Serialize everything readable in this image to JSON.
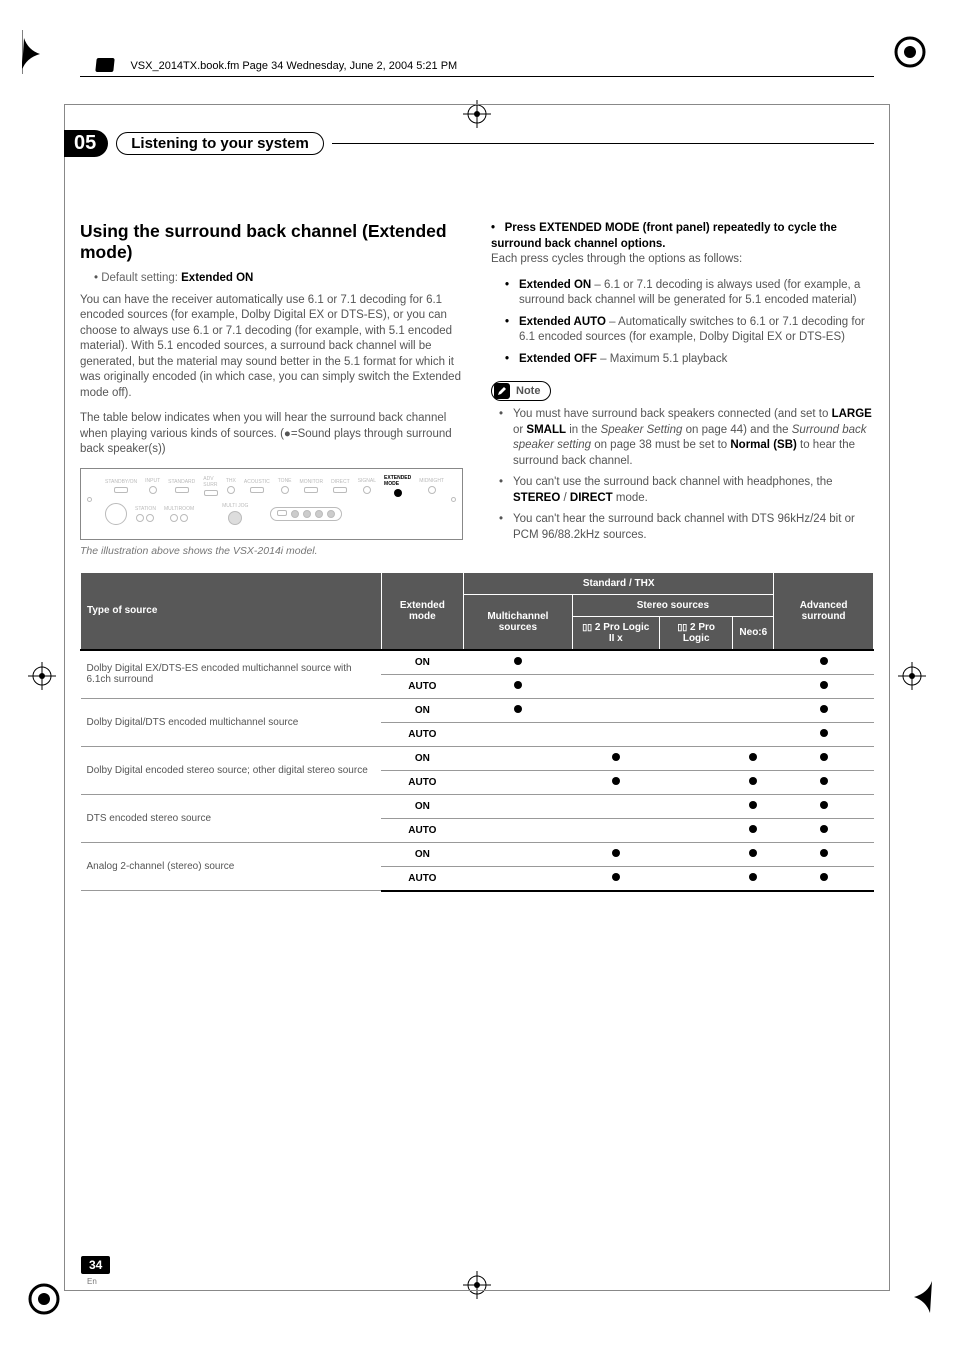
{
  "bookline": "VSX_2014TX.book.fm  Page 34  Wednesday, June 2, 2004  5:21 PM",
  "chapter_num": "05",
  "chapter_title": "Listening to your system",
  "left": {
    "h2": "Using the surround back channel (Extended mode)",
    "default_label": "Default setting: ",
    "default_value": "Extended ON",
    "p1": "You can have the receiver automatically use 6.1 or 7.1 decoding for 6.1 encoded sources (for example, Dolby Digital EX or DTS-ES), or you can choose to always use 6.1 or 7.1 decoding (for example, with 5.1 encoded material). With 5.1 encoded sources, a surround back channel will be generated, but the material may sound better in the 5.1 format for which it was originally encoded (in which case, you can simply switch the Extended mode off).",
    "p2": "The table below indicates when you will hear the surround back channel when playing various kinds of sources. (●=Sound plays through surround back speaker(s))",
    "caption": "The illustration above shows the VSX-2014i model.",
    "ext_label": "EXTENDED MODE"
  },
  "right": {
    "lead_b": "Press EXTENDED MODE (front panel) repeatedly to cycle the surround back channel options.",
    "lead_tail": "Each press cycles through the options as follows:",
    "opts": [
      {
        "b": "Extended ON",
        "t": " – 6.1 or 7.1 decoding is always used (for example, a surround back channel will be generated for 5.1 encoded material)"
      },
      {
        "b": "Extended AUTO",
        "t": " – Automatically switches to 6.1 or 7.1 decoding for 6.1 encoded sources (for example, Dolby Digital EX or DTS-ES)"
      },
      {
        "b": "Extended OFF",
        "t": " – Maximum 5.1 playback"
      }
    ],
    "note_label": "Note",
    "notes": {
      "n1a": "You must have surround back speakers connected (and set to ",
      "large": "LARGE",
      "or": " or ",
      "small": "SMALL",
      "n1b": " in the ",
      "ss": "Speaker Setting",
      "n1c": " on page 44) and the ",
      "sbss": "Surround back speaker setting",
      "n1d": " on page 38 must be set to ",
      "normal": "Normal (SB)",
      "n1e": " to hear the surround back channel.",
      "n2a": "You can't use the surround back channel with headphones, the ",
      "stereo": "STEREO",
      "slash": " / ",
      "direct": "DIRECT",
      "n2b": " mode.",
      "n3": "You can't hear the surround back channel with DTS 96kHz/24 bit or PCM 96/88.2kHz sources."
    }
  },
  "table": {
    "head": {
      "type": "Type of source",
      "ext": "Extended mode",
      "std": "Standard / THX",
      "multi": "Multichannel sources",
      "stereo": "Stereo sources",
      "pl2x": "2 Pro Logic II x",
      "pl": "2 Pro Logic",
      "neo": "Neo:6",
      "adv": "Advanced surround"
    },
    "rows": [
      {
        "src": "Dolby Digital EX/DTS-ES encoded multichannel source with 6.1ch surround",
        "modes": [
          {
            "m": "ON",
            "c": [
              1,
              0,
              0,
              0,
              1
            ]
          },
          {
            "m": "AUTO",
            "c": [
              1,
              0,
              0,
              0,
              1
            ]
          }
        ]
      },
      {
        "src": "Dolby Digital/DTS encoded multichannel source",
        "modes": [
          {
            "m": "ON",
            "c": [
              1,
              0,
              0,
              0,
              1
            ]
          },
          {
            "m": "AUTO",
            "c": [
              0,
              0,
              0,
              0,
              1
            ]
          }
        ]
      },
      {
        "src": "Dolby Digital encoded stereo source; other digital stereo source",
        "modes": [
          {
            "m": "ON",
            "c": [
              0,
              1,
              0,
              1,
              1
            ]
          },
          {
            "m": "AUTO",
            "c": [
              0,
              1,
              0,
              1,
              1
            ]
          }
        ]
      },
      {
        "src": "DTS encoded stereo source",
        "modes": [
          {
            "m": "ON",
            "c": [
              0,
              0,
              0,
              1,
              1
            ]
          },
          {
            "m": "AUTO",
            "c": [
              0,
              0,
              0,
              1,
              1
            ]
          }
        ]
      },
      {
        "src": "Analog 2-channel (stereo) source",
        "modes": [
          {
            "m": "ON",
            "c": [
              0,
              1,
              0,
              1,
              1
            ]
          },
          {
            "m": "AUTO",
            "c": [
              0,
              1,
              0,
              1,
              1
            ]
          }
        ]
      }
    ],
    "colors": {
      "head_bg": "#585858",
      "head_fg": "#ffffff",
      "row_fg": "#555555",
      "border": "#999999",
      "heavy": "#000000"
    }
  },
  "page_num": "34",
  "page_lang": "En"
}
